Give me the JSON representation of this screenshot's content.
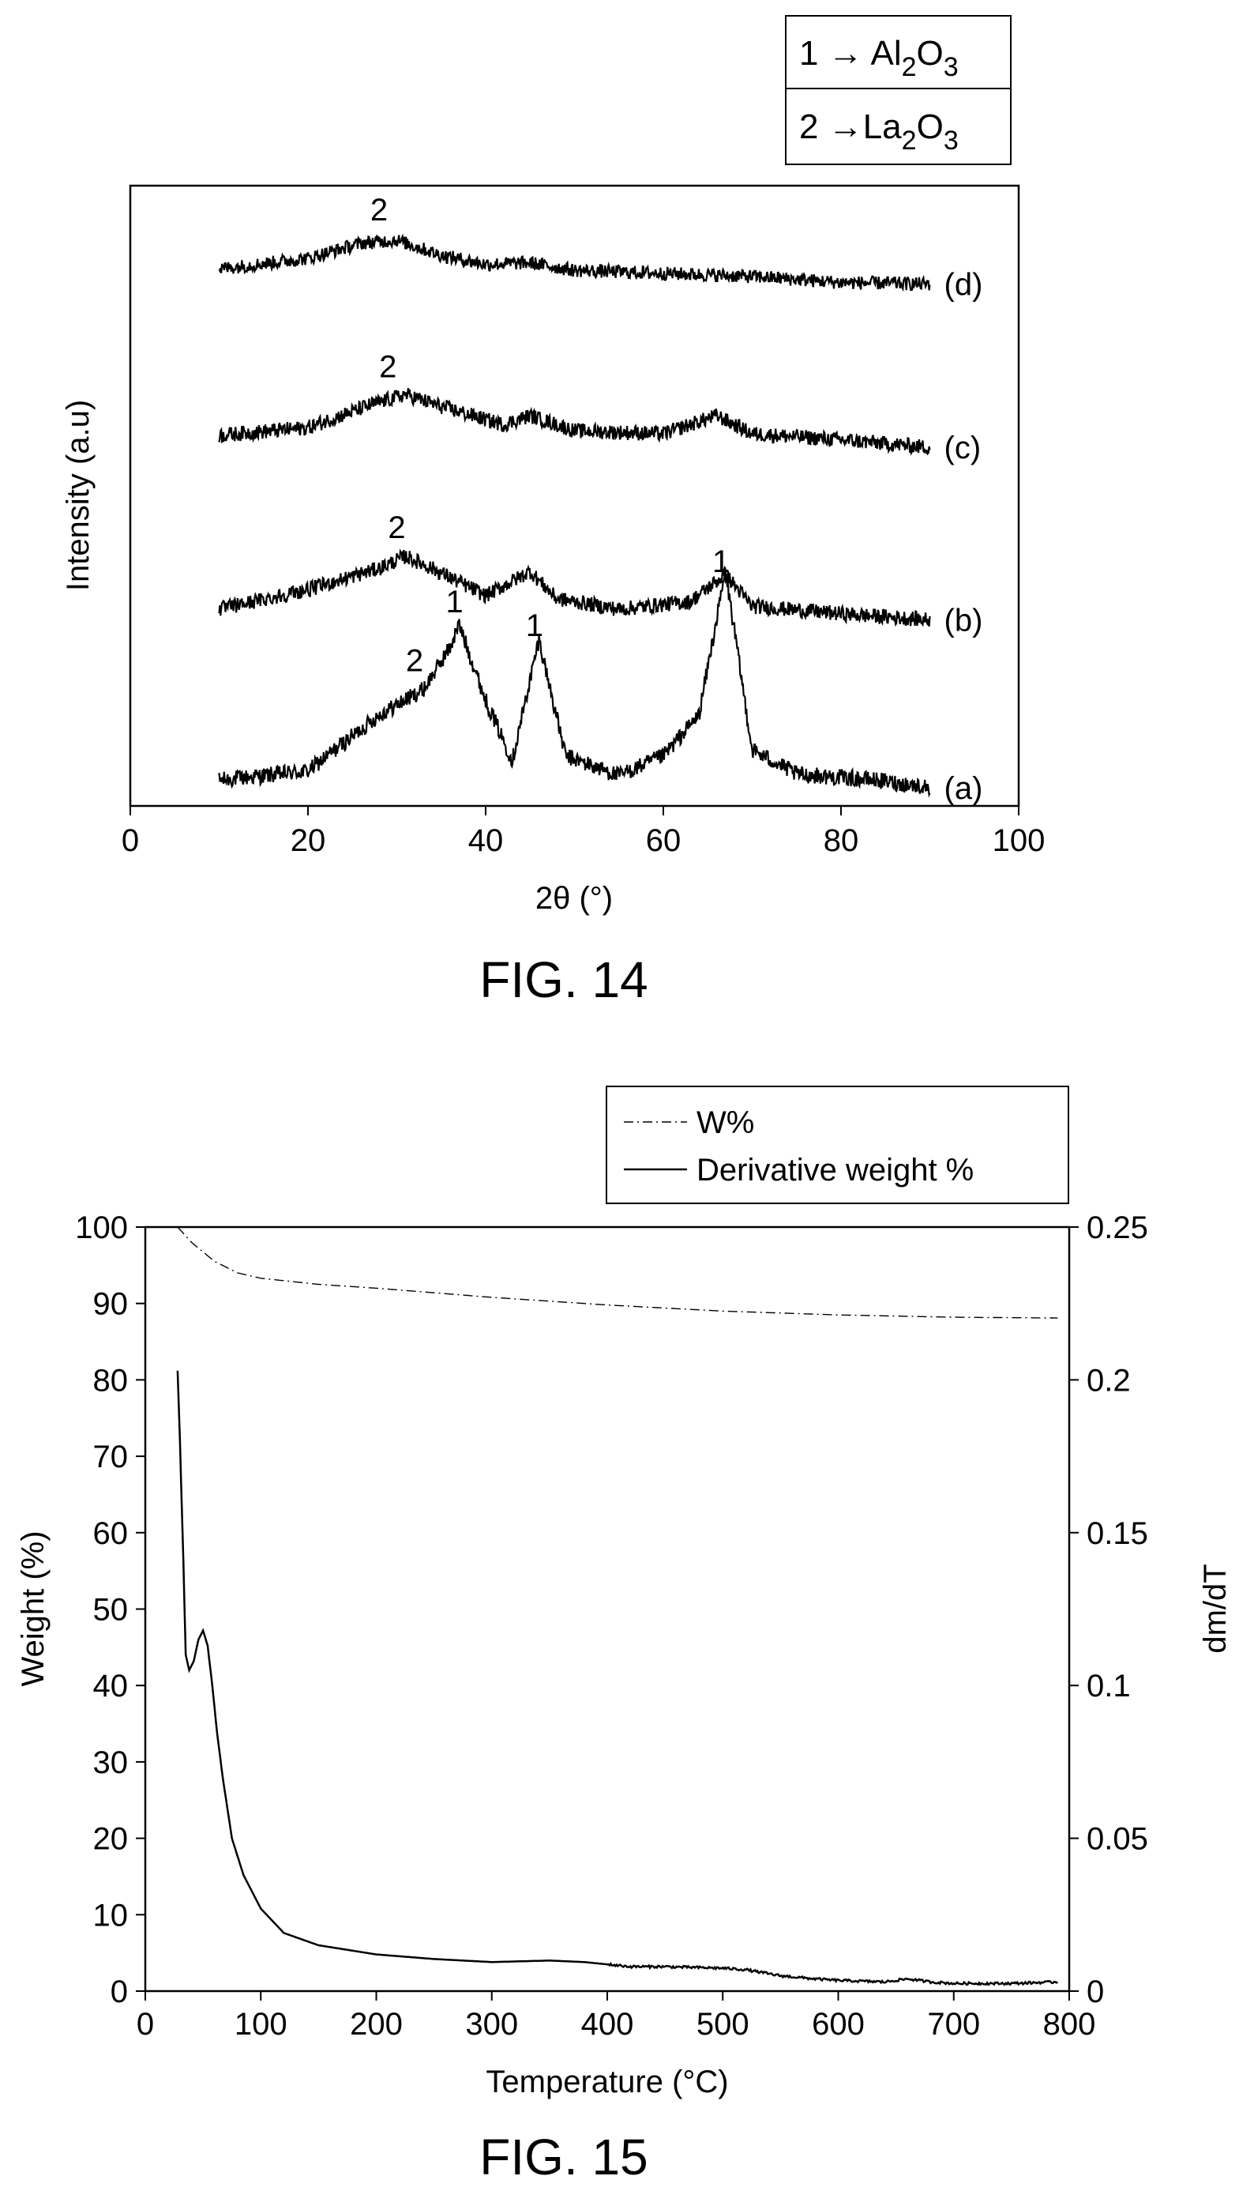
{
  "chart_data": [
    {
      "figure_label": "FIG. 14",
      "type": "line",
      "xlabel": "2θ (°)",
      "ylabel": "Intensity (a.u)",
      "xlim": [
        0,
        100
      ],
      "xticks": [
        "0",
        "20",
        "40",
        "60",
        "80",
        "100"
      ],
      "legend": [
        "1 → Al2O3",
        "2 →La2O3"
      ],
      "legend_items": [
        {
          "prefix": "1 → ",
          "base1": "Al",
          "sub1": "2",
          "base2": "O",
          "sub2": "3"
        },
        {
          "prefix": "2 →",
          "base1": "La",
          "sub1": "2",
          "base2": "O",
          "sub2": "3"
        }
      ],
      "legend_position": "above top-right",
      "series": [
        {
          "name": "(a)",
          "x_range": [
            10,
            90
          ],
          "offset": 0.05,
          "noise": 0.055,
          "base": [
            [
              10,
              0.02
            ],
            [
              20,
              0.08
            ],
            [
              28,
              0.45
            ],
            [
              33,
              0.62
            ],
            [
              36,
              0.9
            ],
            [
              37,
              1.05
            ],
            [
              40,
              0.55
            ],
            [
              43,
              0.15
            ],
            [
              46,
              0.95
            ],
            [
              49,
              0.18
            ],
            [
              55,
              0.05
            ],
            [
              60,
              0.18
            ],
            [
              64,
              0.45
            ],
            [
              67,
              1.4
            ],
            [
              70,
              0.22
            ],
            [
              75,
              0.06
            ],
            [
              84,
              0.02
            ],
            [
              90,
              -0.03
            ]
          ],
          "peak_labels": [
            {
              "x": 32,
              "text": "2"
            },
            {
              "x": 36.5,
              "text": "1"
            },
            {
              "x": 45.5,
              "text": "1"
            },
            {
              "x": 66.5,
              "text": "1"
            }
          ]
        },
        {
          "name": "(b)",
          "x_range": [
            10,
            90
          ],
          "offset": 1.15,
          "noise": 0.05,
          "base": [
            [
              10,
              0.05
            ],
            [
              20,
              0.18
            ],
            [
              28,
              0.32
            ],
            [
              31,
              0.4
            ],
            [
              34,
              0.32
            ],
            [
              40,
              0.14
            ],
            [
              45,
              0.3
            ],
            [
              48,
              0.12
            ],
            [
              55,
              0.05
            ],
            [
              63,
              0.1
            ],
            [
              67,
              0.28
            ],
            [
              70,
              0.07
            ],
            [
              80,
              0.02
            ],
            [
              90,
              -0.02
            ]
          ],
          "peak_labels": [
            {
              "x": 30,
              "text": "2"
            }
          ]
        },
        {
          "name": "(c)",
          "x_range": [
            10,
            90
          ],
          "offset": 2.3,
          "noise": 0.05,
          "base": [
            [
              10,
              0.05
            ],
            [
              20,
              0.1
            ],
            [
              27,
              0.25
            ],
            [
              31,
              0.32
            ],
            [
              35,
              0.24
            ],
            [
              42,
              0.12
            ],
            [
              45,
              0.18
            ],
            [
              50,
              0.08
            ],
            [
              60,
              0.06
            ],
            [
              66,
              0.18
            ],
            [
              70,
              0.06
            ],
            [
              80,
              0.02
            ],
            [
              90,
              -0.03
            ]
          ],
          "peak_labels": [
            {
              "x": 29,
              "text": "2"
            }
          ]
        },
        {
          "name": "(d)",
          "x_range": [
            10,
            90
          ],
          "offset": 3.4,
          "noise": 0.045,
          "base": [
            [
              10,
              0.05
            ],
            [
              20,
              0.12
            ],
            [
              26,
              0.22
            ],
            [
              30,
              0.24
            ],
            [
              35,
              0.14
            ],
            [
              40,
              0.08
            ],
            [
              45,
              0.09
            ],
            [
              50,
              0.04
            ],
            [
              60,
              0.02
            ],
            [
              70,
              0.0
            ],
            [
              80,
              -0.04
            ],
            [
              90,
              -0.05
            ]
          ],
          "peak_labels": [
            {
              "x": 28,
              "text": "2"
            }
          ]
        }
      ]
    },
    {
      "figure_label": "FIG. 15",
      "type": "line",
      "xlabel": "Temperature (°C)",
      "ylabel": "Weight (%)",
      "y2label": "dm/dT",
      "xlim": [
        0,
        800
      ],
      "ylim": [
        0,
        100
      ],
      "y2lim": [
        0,
        0.25
      ],
      "xticks": [
        "0",
        "100",
        "200",
        "300",
        "400",
        "500",
        "600",
        "700",
        "800"
      ],
      "yticks": [
        "0",
        "10",
        "20",
        "30",
        "40",
        "50",
        "60",
        "70",
        "80",
        "90",
        "100"
      ],
      "y2ticks": [
        "0",
        "0.05",
        "0.1",
        "0.15",
        "0.2",
        "0.25"
      ],
      "legend_position": "above top-right",
      "series": [
        {
          "name": "W%",
          "axis": "left",
          "style": "dash-dot",
          "x": [
            28,
            40,
            60,
            80,
            100,
            150,
            200,
            300,
            400,
            500,
            600,
            700,
            790
          ],
          "y": [
            100,
            98,
            95.5,
            94,
            93.3,
            92.5,
            92,
            90.8,
            89.8,
            89,
            88.5,
            88.2,
            88.1
          ]
        },
        {
          "name": "Derivative weight %",
          "axis": "right",
          "style": "solid",
          "x": [
            28,
            30,
            33,
            35,
            38,
            42,
            46,
            50,
            54,
            58,
            62,
            67,
            75,
            85,
            100,
            120,
            150,
            200,
            250,
            300,
            350,
            380,
            420,
            450,
            500,
            520,
            550,
            580,
            600,
            640,
            660,
            680,
            700,
            750,
            790
          ],
          "y": [
            0.203,
            0.18,
            0.14,
            0.11,
            0.105,
            0.108,
            0.115,
            0.118,
            0.113,
            0.1,
            0.085,
            0.07,
            0.05,
            0.038,
            0.027,
            0.019,
            0.015,
            0.012,
            0.0105,
            0.0095,
            0.01,
            0.0095,
            0.008,
            0.008,
            0.0075,
            0.007,
            0.005,
            0.004,
            0.0035,
            0.003,
            0.004,
            0.003,
            0.0025,
            0.0025,
            0.003
          ]
        }
      ]
    }
  ]
}
